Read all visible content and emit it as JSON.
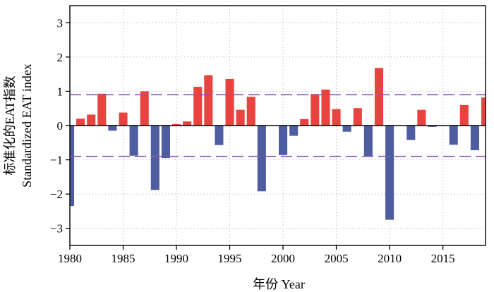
{
  "chart_data": {
    "type": "bar",
    "xlabel": "年份 Year",
    "ylabel_line1": "标准化的EAT指数",
    "ylabel_line2": "Standardized  EAT index",
    "xlim": [
      1980,
      2019
    ],
    "ylim": [
      -3.5,
      3.5
    ],
    "xticks": [
      1980,
      1985,
      1990,
      1995,
      2000,
      2005,
      2010,
      2015
    ],
    "yticks": [
      -3,
      -2,
      -1,
      0,
      1,
      2,
      3
    ],
    "ytick_labels": [
      "−3",
      "−2",
      "−1",
      "0",
      "1",
      "2",
      "3"
    ],
    "grid": true,
    "thresholds": [
      0.9,
      -0.9
    ],
    "colors": {
      "positive": "#e8433f",
      "negative": "#4e5da0",
      "threshold": "#8a55b5",
      "grid": "#bfbfbf"
    },
    "x": [
      1980,
      1981,
      1982,
      1983,
      1984,
      1985,
      1986,
      1987,
      1988,
      1989,
      1990,
      1991,
      1992,
      1993,
      1994,
      1995,
      1996,
      1997,
      1998,
      1999,
      2000,
      2001,
      2002,
      2003,
      2004,
      2005,
      2006,
      2007,
      2008,
      2009,
      2010,
      2011,
      2012,
      2013,
      2014,
      2015,
      2016,
      2017,
      2018,
      2019
    ],
    "values": [
      -2.35,
      0.2,
      0.32,
      0.93,
      -0.15,
      0.38,
      -0.88,
      1.0,
      -1.88,
      -0.95,
      0.04,
      0.12,
      1.13,
      1.47,
      -0.57,
      1.36,
      0.46,
      0.84,
      -1.92,
      0.01,
      -0.86,
      -0.3,
      0.19,
      0.92,
      1.05,
      0.48,
      -0.18,
      0.51,
      -0.91,
      1.68,
      -2.75,
      0.0,
      -0.42,
      0.46,
      -0.04,
      0.0,
      -0.56,
      0.6,
      -0.72,
      0.82
    ]
  }
}
